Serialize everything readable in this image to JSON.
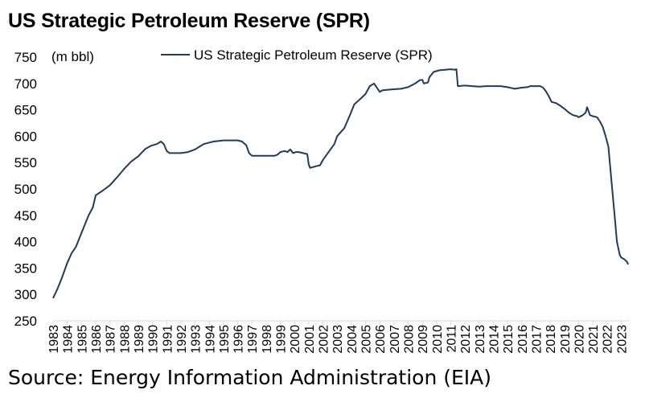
{
  "title": "US Strategic Petroleum Reserve (SPR)",
  "source": "Source: Energy Information Administration (EIA)",
  "chart_data": {
    "type": "line",
    "title": "US Strategic Petroleum Reserve (SPR)",
    "ylabel": "(m bbl)",
    "xlabel": "",
    "ylim": [
      250,
      750
    ],
    "yticks": [
      250,
      300,
      350,
      400,
      450,
      500,
      550,
      600,
      650,
      700,
      750
    ],
    "xlim": [
      1983,
      2023.6
    ],
    "xticks": [
      "1983",
      "1984",
      "1985",
      "1986",
      "1987",
      "1988",
      "1989",
      "1990",
      "1991",
      "1992",
      "1993",
      "1994",
      "1995",
      "1996",
      "1997",
      "1998",
      "1999",
      "2000",
      "2001",
      "2002",
      "2003",
      "2004",
      "2005",
      "2006",
      "2007",
      "2008",
      "2009",
      "2010",
      "2011",
      "2012",
      "2013",
      "2014",
      "2015",
      "2016",
      "2017",
      "2018",
      "2019",
      "2020",
      "2021",
      "2022",
      "2023"
    ],
    "grid": false,
    "legend_position": "top",
    "series": [
      {
        "name": "US Strategic Petroleum Reserve (SPR)",
        "color": "#1f3b5e",
        "x": [
          1983.0,
          1983.3,
          1983.6,
          1984.0,
          1984.3,
          1984.6,
          1984.9,
          1985.2,
          1985.5,
          1985.8,
          1986.0,
          1986.5,
          1987.0,
          1987.5,
          1988.0,
          1988.5,
          1989.0,
          1989.5,
          1989.9,
          1990.3,
          1990.6,
          1990.8,
          1991.0,
          1991.2,
          1992.0,
          1992.5,
          1993.0,
          1993.3,
          1993.6,
          1994.0,
          1994.3,
          1995.0,
          1995.5,
          1996.0,
          1996.3,
          1996.6,
          1996.8,
          1997.0,
          1998.0,
          1998.6,
          1998.8,
          1999.0,
          1999.3,
          1999.5,
          1999.7,
          1999.9,
          2000.1,
          2000.3,
          2000.6,
          2000.9,
          2001.0,
          2001.1,
          2001.5,
          2001.8,
          2002.0,
          2002.4,
          2002.8,
          2003.0,
          2003.5,
          2003.9,
          2004.2,
          2004.6,
          2005.0,
          2005.3,
          2005.6,
          2005.9,
          2006.0,
          2006.2,
          2006.5,
          2007.0,
          2007.5,
          2008.0,
          2008.5,
          2008.8,
          2009.0,
          2009.1,
          2009.4,
          2009.5,
          2009.8,
          2010.2,
          2010.6,
          2011.0,
          2011.3,
          2011.4,
          2011.5,
          2012.0,
          2012.5,
          2013.0,
          2013.5,
          2014.0,
          2014.5,
          2015.0,
          2015.5,
          2016.0,
          2016.4,
          2016.6,
          2017.0,
          2017.3,
          2017.5,
          2017.7,
          2017.9,
          2018.1,
          2018.4,
          2018.7,
          2019.0,
          2019.3,
          2019.6,
          2019.9,
          2020.0,
          2020.3,
          2020.5,
          2020.6,
          2020.8,
          2021.0,
          2021.3,
          2021.5,
          2021.7,
          2021.9,
          2022.1,
          2022.3,
          2022.5,
          2022.7,
          2022.9,
          2023.0,
          2023.2,
          2023.4,
          2023.5
        ],
        "y": [
          293,
          310,
          330,
          360,
          378,
          390,
          410,
          430,
          450,
          465,
          488,
          497,
          507,
          522,
          538,
          552,
          562,
          576,
          582,
          585,
          590,
          585,
          572,
          568,
          568,
          570,
          575,
          580,
          585,
          588,
          590,
          592,
          592,
          592,
          590,
          583,
          568,
          563,
          563,
          563,
          565,
          570,
          572,
          570,
          575,
          568,
          570,
          570,
          568,
          566,
          546,
          540,
          543,
          545,
          555,
          570,
          585,
          600,
          615,
          640,
          660,
          670,
          680,
          695,
          700,
          688,
          684,
          687,
          688,
          689,
          690,
          693,
          700,
          706,
          707,
          700,
          702,
          712,
          722,
          725,
          726,
          727,
          726,
          727,
          695,
          696,
          695,
          694,
          695,
          695,
          695,
          693,
          690,
          692,
          693,
          695,
          695,
          695,
          692,
          685,
          676,
          665,
          663,
          658,
          652,
          645,
          640,
          638,
          636,
          640,
          645,
          655,
          640,
          638,
          636,
          628,
          618,
          600,
          580,
          520,
          460,
          400,
          375,
          370,
          367,
          362,
          357
        ]
      }
    ]
  }
}
